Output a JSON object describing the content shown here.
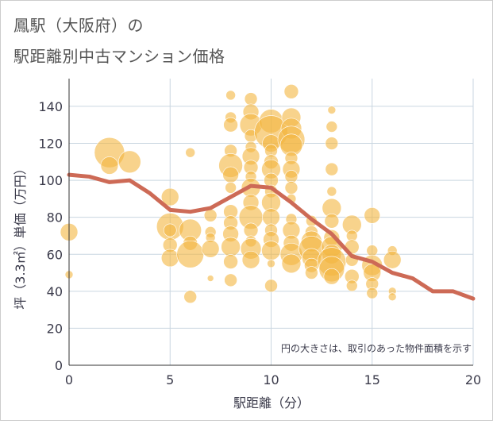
{
  "title_line1": "鳳駅（大阪府）の",
  "title_line2": "駅距離別中古マンション価格",
  "chart_data": {
    "type": "scatter",
    "xlabel": "駅距離（分）",
    "ylabel": "坪（3.3㎡）単価（万円）",
    "xlim": [
      0,
      20
    ],
    "ylim": [
      0,
      155
    ],
    "xticks": [
      0,
      5,
      10,
      15,
      20
    ],
    "yticks": [
      0,
      20,
      40,
      60,
      80,
      100,
      120,
      140
    ],
    "grid": true,
    "annotation": "円の大きさは、取引のあった物件面積を示す",
    "colors": {
      "bubble": "#f3b53f",
      "trend": "#cd6a56",
      "grid": "#c9d6e0",
      "text": "#3a3a4a"
    },
    "trend_line": {
      "x": [
        0,
        1,
        2,
        3,
        4,
        5,
        6,
        7,
        8,
        9,
        10,
        11,
        12,
        13,
        14,
        15,
        16,
        17,
        18,
        19,
        20
      ],
      "y": [
        103,
        102,
        99,
        100,
        93,
        84,
        83,
        85,
        91,
        97,
        96,
        88,
        79,
        71,
        59,
        56,
        50,
        47,
        40,
        40,
        36
      ]
    },
    "bubbles": [
      {
        "x": 0,
        "y": 72,
        "s": 11
      },
      {
        "x": 0,
        "y": 49,
        "s": 5
      },
      {
        "x": 2,
        "y": 115,
        "s": 19
      },
      {
        "x": 2,
        "y": 108,
        "s": 11
      },
      {
        "x": 3,
        "y": 110,
        "s": 14
      },
      {
        "x": 5,
        "y": 91,
        "s": 11
      },
      {
        "x": 5,
        "y": 75,
        "s": 17
      },
      {
        "x": 5,
        "y": 73,
        "s": 8
      },
      {
        "x": 5,
        "y": 65,
        "s": 9
      },
      {
        "x": 5,
        "y": 58,
        "s": 11
      },
      {
        "x": 6,
        "y": 115,
        "s": 6
      },
      {
        "x": 6,
        "y": 73,
        "s": 14
      },
      {
        "x": 6,
        "y": 66,
        "s": 9
      },
      {
        "x": 6,
        "y": 60,
        "s": 17
      },
      {
        "x": 6,
        "y": 37,
        "s": 8
      },
      {
        "x": 7,
        "y": 81,
        "s": 8
      },
      {
        "x": 7,
        "y": 72,
        "s": 7
      },
      {
        "x": 7,
        "y": 69,
        "s": 6
      },
      {
        "x": 7,
        "y": 63,
        "s": 11
      },
      {
        "x": 7,
        "y": 47,
        "s": 4
      },
      {
        "x": 8,
        "y": 146,
        "s": 6
      },
      {
        "x": 8,
        "y": 134,
        "s": 7
      },
      {
        "x": 8,
        "y": 130,
        "s": 9
      },
      {
        "x": 8,
        "y": 116,
        "s": 8
      },
      {
        "x": 8,
        "y": 108,
        "s": 15
      },
      {
        "x": 8,
        "y": 103,
        "s": 10
      },
      {
        "x": 8,
        "y": 96,
        "s": 7
      },
      {
        "x": 8,
        "y": 83,
        "s": 9
      },
      {
        "x": 8,
        "y": 77,
        "s": 9
      },
      {
        "x": 8,
        "y": 71,
        "s": 10
      },
      {
        "x": 8,
        "y": 64,
        "s": 12
      },
      {
        "x": 8,
        "y": 56,
        "s": 9
      },
      {
        "x": 8,
        "y": 46,
        "s": 8
      },
      {
        "x": 9,
        "y": 144,
        "s": 8
      },
      {
        "x": 9,
        "y": 137,
        "s": 10
      },
      {
        "x": 9,
        "y": 130,
        "s": 14
      },
      {
        "x": 9,
        "y": 124,
        "s": 8
      },
      {
        "x": 9,
        "y": 118,
        "s": 7
      },
      {
        "x": 9,
        "y": 113,
        "s": 11
      },
      {
        "x": 9,
        "y": 107,
        "s": 9
      },
      {
        "x": 9,
        "y": 102,
        "s": 7
      },
      {
        "x": 9,
        "y": 96,
        "s": 12
      },
      {
        "x": 9,
        "y": 88,
        "s": 10
      },
      {
        "x": 9,
        "y": 80,
        "s": 15
      },
      {
        "x": 9,
        "y": 73,
        "s": 9
      },
      {
        "x": 9,
        "y": 67,
        "s": 7
      },
      {
        "x": 9,
        "y": 63,
        "s": 13
      },
      {
        "x": 9,
        "y": 57,
        "s": 11
      },
      {
        "x": 10,
        "y": 132,
        "s": 15
      },
      {
        "x": 10,
        "y": 126,
        "s": 21
      },
      {
        "x": 10,
        "y": 120,
        "s": 11
      },
      {
        "x": 10,
        "y": 116,
        "s": 8
      },
      {
        "x": 10,
        "y": 110,
        "s": 9
      },
      {
        "x": 10,
        "y": 106,
        "s": 12
      },
      {
        "x": 10,
        "y": 100,
        "s": 9
      },
      {
        "x": 10,
        "y": 94,
        "s": 8
      },
      {
        "x": 10,
        "y": 88,
        "s": 12
      },
      {
        "x": 10,
        "y": 80,
        "s": 11
      },
      {
        "x": 10,
        "y": 73,
        "s": 8
      },
      {
        "x": 10,
        "y": 68,
        "s": 10
      },
      {
        "x": 10,
        "y": 62,
        "s": 12
      },
      {
        "x": 10,
        "y": 55,
        "s": 5
      },
      {
        "x": 10,
        "y": 43,
        "s": 8
      },
      {
        "x": 11,
        "y": 148,
        "s": 9
      },
      {
        "x": 11,
        "y": 134,
        "s": 12
      },
      {
        "x": 11,
        "y": 128,
        "s": 13
      },
      {
        "x": 11,
        "y": 122,
        "s": 17
      },
      {
        "x": 11,
        "y": 119,
        "s": 14
      },
      {
        "x": 11,
        "y": 112,
        "s": 8
      },
      {
        "x": 11,
        "y": 106,
        "s": 11
      },
      {
        "x": 11,
        "y": 102,
        "s": 8
      },
      {
        "x": 11,
        "y": 96,
        "s": 8
      },
      {
        "x": 11,
        "y": 90,
        "s": 6
      },
      {
        "x": 11,
        "y": 79,
        "s": 7
      },
      {
        "x": 11,
        "y": 73,
        "s": 11
      },
      {
        "x": 11,
        "y": 66,
        "s": 10
      },
      {
        "x": 11,
        "y": 60,
        "s": 14
      },
      {
        "x": 11,
        "y": 55,
        "s": 12
      },
      {
        "x": 12,
        "y": 78,
        "s": 7
      },
      {
        "x": 12,
        "y": 72,
        "s": 8
      },
      {
        "x": 12,
        "y": 67,
        "s": 13
      },
      {
        "x": 12,
        "y": 63,
        "s": 16
      },
      {
        "x": 12,
        "y": 58,
        "s": 12
      },
      {
        "x": 12,
        "y": 54,
        "s": 9
      },
      {
        "x": 12,
        "y": 50,
        "s": 8
      },
      {
        "x": 13,
        "y": 138,
        "s": 5
      },
      {
        "x": 13,
        "y": 129,
        "s": 7
      },
      {
        "x": 13,
        "y": 120,
        "s": 8
      },
      {
        "x": 13,
        "y": 106,
        "s": 8
      },
      {
        "x": 13,
        "y": 94,
        "s": 6
      },
      {
        "x": 13,
        "y": 85,
        "s": 12
      },
      {
        "x": 13,
        "y": 78,
        "s": 9
      },
      {
        "x": 13,
        "y": 69,
        "s": 10
      },
      {
        "x": 13,
        "y": 64,
        "s": 13
      },
      {
        "x": 13,
        "y": 60,
        "s": 12
      },
      {
        "x": 13,
        "y": 56,
        "s": 18
      },
      {
        "x": 13,
        "y": 52,
        "s": 16
      },
      {
        "x": 13,
        "y": 48,
        "s": 10
      },
      {
        "x": 14,
        "y": 76,
        "s": 12
      },
      {
        "x": 14,
        "y": 70,
        "s": 7
      },
      {
        "x": 14,
        "y": 64,
        "s": 9
      },
      {
        "x": 14,
        "y": 57,
        "s": 8
      },
      {
        "x": 14,
        "y": 48,
        "s": 9
      },
      {
        "x": 14,
        "y": 43,
        "s": 7
      },
      {
        "x": 15,
        "y": 81,
        "s": 10
      },
      {
        "x": 15,
        "y": 62,
        "s": 7
      },
      {
        "x": 15,
        "y": 54,
        "s": 13
      },
      {
        "x": 15,
        "y": 50,
        "s": 11
      },
      {
        "x": 15,
        "y": 44,
        "s": 8
      },
      {
        "x": 15,
        "y": 39,
        "s": 7
      },
      {
        "x": 16,
        "y": 62,
        "s": 6
      },
      {
        "x": 16,
        "y": 57,
        "s": 11
      },
      {
        "x": 16,
        "y": 40,
        "s": 5
      },
      {
        "x": 16,
        "y": 37,
        "s": 5
      }
    ]
  }
}
